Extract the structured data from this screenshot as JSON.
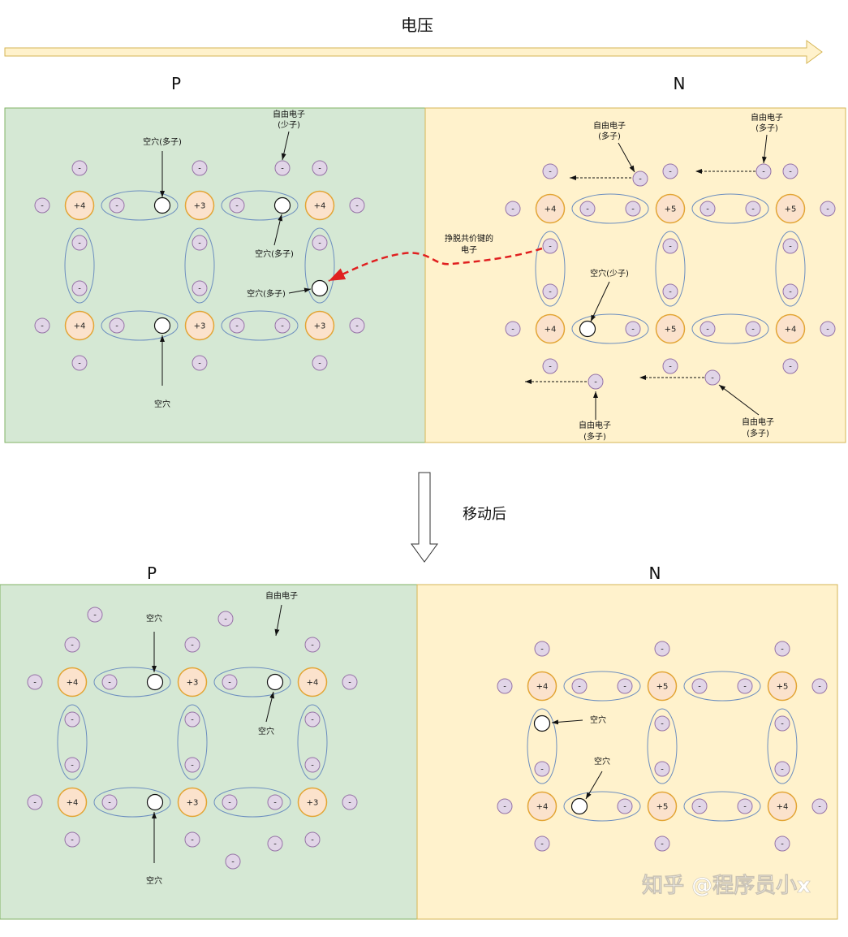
{
  "header": {
    "voltage_label": "电压",
    "moved_label": "移动后"
  },
  "colors": {
    "p_region": "#d5e8d4",
    "n_region": "#fff2cc",
    "atom_fill": "#fbe2cc",
    "atom_stroke": "#e3a535",
    "electron_fill": "#e1d5e7",
    "electron_stroke": "#9673a6",
    "bond_stroke": "#6c8ebf",
    "escape_path": "#e02020"
  },
  "top": {
    "p_label": "P",
    "n_label": "N",
    "p_atoms": [
      "+4",
      "+3",
      "+4",
      "+4",
      "+3",
      "+3"
    ],
    "n_atoms": [
      "+4",
      "+5",
      "+5",
      "+4",
      "+5",
      "+4"
    ],
    "callouts": {
      "p_free_electron": [
        "自由电子",
        "(少子)"
      ],
      "p_hole_top": "空穴(多子)",
      "p_hole_mid": "空穴(多子)",
      "p_hole_right": "空穴(多子)",
      "p_hole_bottom": "空穴",
      "n_free_top_left": [
        "自由电子",
        "(多子)"
      ],
      "n_free_top_right": [
        "自由电子",
        "(多子)"
      ],
      "escaped": [
        "挣脱共价键的",
        "电子"
      ],
      "n_hole": "空穴(少子)",
      "n_free_bottom_left": [
        "自由电子",
        "(多子)"
      ],
      "n_free_bottom_right": [
        "自由电子",
        "(多子)"
      ]
    }
  },
  "bottom": {
    "p_label": "P",
    "n_label": "N",
    "p_atoms": [
      "+4",
      "+3",
      "+4",
      "+4",
      "+3",
      "+3"
    ],
    "n_atoms": [
      "+4",
      "+5",
      "+5",
      "+4",
      "+5",
      "+4"
    ],
    "callouts": {
      "p_hole_top": "空穴",
      "p_free_electron": "自由电子",
      "p_hole_mid": "空穴",
      "p_hole_bottom": "空穴",
      "n_hole_1": "空穴",
      "n_hole_2": "空穴"
    }
  },
  "watermark": "知乎 @程序员小x",
  "electron_sign": "-"
}
